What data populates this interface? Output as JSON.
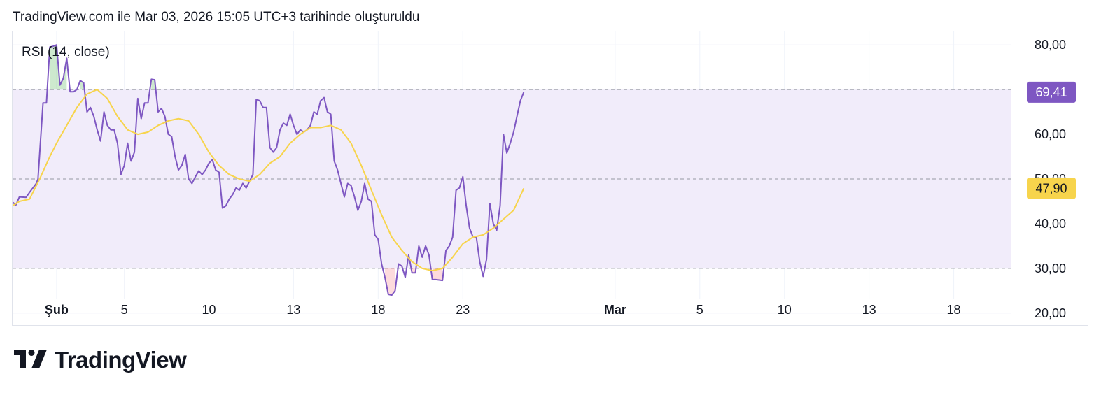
{
  "header": {
    "created_text": "TradingView.com ile Mar 03, 2026 15:05 UTC+3 tarihinde oluşturuldu"
  },
  "brand": {
    "name": "TradingView",
    "logo_icon": "tradingview-logo-icon"
  },
  "colors": {
    "rsi_line": "#7e57c2",
    "ma_line": "#f7d44c",
    "band_fill": "#f1ecfa",
    "rsi_badge": "#7e57c2",
    "ma_badge": "#f7d44c",
    "grid": "#f0f3fa",
    "dashed": "#9598a1"
  },
  "chart_data": {
    "type": "line",
    "title": "RSI (14, close)",
    "ylim": [
      17,
      83
    ],
    "y_ticks": [
      "20,00",
      "30,00",
      "40,00",
      "50,00",
      "60,00",
      "80,00"
    ],
    "y_tick_values": [
      20,
      30,
      40,
      50,
      60,
      80
    ],
    "x_ticks": [
      {
        "label": "Şub",
        "day": 0,
        "bold": true
      },
      {
        "label": "5",
        "day": 4,
        "bold": false
      },
      {
        "label": "10",
        "day": 9,
        "bold": false
      },
      {
        "label": "13",
        "day": 14,
        "bold": false
      },
      {
        "label": "18",
        "day": 19,
        "bold": false
      },
      {
        "label": "23",
        "day": 24,
        "bold": false
      },
      {
        "label": "Mar",
        "day": 33,
        "bold": true
      },
      {
        "label": "5",
        "day": 38,
        "bold": false
      },
      {
        "label": "10",
        "day": 43,
        "bold": false
      },
      {
        "label": "13",
        "day": 48,
        "bold": false
      },
      {
        "label": "18",
        "day": 53,
        "bold": false
      }
    ],
    "x_range_days": [
      -2.6,
      61
    ],
    "overbought": 70,
    "midline": 50,
    "oversold": 30,
    "series": [
      {
        "values": [
          [
            -2.6,
            44.8
          ],
          [
            -2.4,
            44.2
          ],
          [
            -2.2,
            46.0
          ],
          [
            -1.8,
            45.9
          ],
          [
            -1.6,
            47.0
          ],
          [
            -1.2,
            49.0
          ],
          [
            -1.1,
            50.0
          ],
          [
            -0.8,
            67.0
          ],
          [
            -0.6,
            67.0
          ],
          [
            -0.4,
            79.5
          ],
          [
            -0.2,
            79.7
          ],
          [
            0.0,
            80.0
          ],
          [
            0.2,
            71.0
          ],
          [
            0.4,
            72.5
          ],
          [
            0.6,
            77.0
          ],
          [
            0.8,
            69.5
          ],
          [
            1.0,
            69.5
          ],
          [
            1.2,
            70.0
          ],
          [
            1.4,
            72.0
          ],
          [
            1.6,
            71.5
          ],
          [
            1.8,
            65.0
          ],
          [
            2.0,
            66.0
          ],
          [
            2.2,
            64.0
          ],
          [
            2.4,
            61.0
          ],
          [
            2.6,
            58.5
          ],
          [
            2.8,
            65.0
          ],
          [
            3.0,
            62.0
          ],
          [
            3.2,
            61.0
          ],
          [
            3.4,
            61.0
          ],
          [
            3.6,
            58.0
          ],
          [
            3.8,
            51.0
          ],
          [
            4.0,
            53.0
          ],
          [
            4.2,
            58.0
          ],
          [
            4.4,
            54.0
          ],
          [
            4.6,
            56.0
          ],
          [
            4.8,
            68.0
          ],
          [
            5.0,
            63.5
          ],
          [
            5.2,
            67.0
          ],
          [
            5.4,
            67.0
          ],
          [
            5.6,
            72.3
          ],
          [
            5.8,
            72.2
          ],
          [
            6.0,
            65.0
          ],
          [
            6.2,
            65.8
          ],
          [
            6.4,
            64.0
          ],
          [
            6.6,
            60.0
          ],
          [
            6.8,
            59.5
          ],
          [
            7.0,
            55.0
          ],
          [
            7.2,
            52.0
          ],
          [
            7.4,
            53.0
          ],
          [
            7.6,
            55.5
          ],
          [
            7.8,
            50.0
          ],
          [
            8.0,
            49.0
          ],
          [
            8.2,
            50.5
          ],
          [
            8.4,
            51.8
          ],
          [
            8.6,
            51.0
          ],
          [
            8.8,
            52.0
          ],
          [
            9.0,
            53.5
          ],
          [
            9.2,
            54.3
          ],
          [
            9.4,
            52.0
          ],
          [
            9.6,
            51.5
          ],
          [
            9.8,
            43.5
          ],
          [
            10.0,
            44.0
          ],
          [
            10.2,
            45.5
          ],
          [
            10.4,
            46.5
          ],
          [
            10.6,
            48.0
          ],
          [
            10.8,
            47.5
          ],
          [
            11.0,
            49.0
          ],
          [
            11.2,
            48.0
          ],
          [
            11.4,
            49.5
          ],
          [
            11.6,
            51.0
          ],
          [
            11.8,
            67.8
          ],
          [
            12.0,
            67.5
          ],
          [
            12.2,
            66.0
          ],
          [
            12.4,
            66.0
          ],
          [
            12.6,
            57.0
          ],
          [
            12.8,
            56.0
          ],
          [
            13.0,
            57.0
          ],
          [
            13.2,
            61.0
          ],
          [
            13.4,
            62.5
          ],
          [
            13.6,
            62.0
          ],
          [
            13.8,
            64.5
          ],
          [
            14.0,
            62.0
          ],
          [
            14.2,
            60.0
          ],
          [
            14.4,
            61.0
          ],
          [
            14.6,
            60.5
          ],
          [
            14.8,
            61.0
          ],
          [
            15.0,
            62.0
          ],
          [
            15.2,
            65.0
          ],
          [
            15.4,
            64.5
          ],
          [
            15.6,
            67.5
          ],
          [
            15.8,
            68.2
          ],
          [
            16.0,
            65.0
          ],
          [
            16.2,
            64.5
          ],
          [
            16.4,
            54.0
          ],
          [
            16.6,
            52.0
          ],
          [
            16.8,
            49.0
          ],
          [
            17.0,
            46.0
          ],
          [
            17.2,
            49.0
          ],
          [
            17.4,
            48.5
          ],
          [
            17.6,
            46.0
          ],
          [
            17.8,
            43.0
          ],
          [
            18.0,
            45.0
          ],
          [
            18.2,
            49.0
          ],
          [
            18.4,
            45.5
          ],
          [
            18.6,
            45.0
          ],
          [
            18.8,
            37.5
          ],
          [
            19.0,
            36.5
          ],
          [
            19.2,
            31.0
          ],
          [
            19.4,
            28.0
          ],
          [
            19.6,
            24.2
          ],
          [
            19.8,
            24.0
          ],
          [
            20.0,
            25.0
          ],
          [
            20.2,
            31.0
          ],
          [
            20.4,
            30.5
          ],
          [
            20.6,
            28.0
          ],
          [
            20.8,
            33.0
          ],
          [
            21.0,
            29.0
          ],
          [
            21.2,
            29.0
          ],
          [
            21.4,
            35.0
          ],
          [
            21.6,
            32.5
          ],
          [
            21.8,
            35.0
          ],
          [
            22.0,
            33.0
          ],
          [
            22.2,
            27.5
          ],
          [
            22.4,
            27.5
          ],
          [
            22.8,
            27.3
          ],
          [
            23.0,
            34.0
          ],
          [
            23.2,
            35.0
          ],
          [
            23.4,
            37.0
          ],
          [
            23.6,
            47.5
          ],
          [
            23.8,
            48.0
          ],
          [
            24.0,
            50.5
          ],
          [
            24.2,
            44.0
          ],
          [
            24.4,
            39.0
          ],
          [
            24.6,
            37.0
          ],
          [
            24.8,
            37.0
          ],
          [
            25.0,
            31.5
          ],
          [
            25.2,
            28.2
          ],
          [
            25.4,
            32.0
          ],
          [
            25.6,
            44.5
          ],
          [
            25.8,
            40.0
          ],
          [
            26.0,
            38.5
          ],
          [
            26.2,
            44.0
          ],
          [
            26.4,
            60.0
          ],
          [
            26.6,
            55.8
          ],
          [
            26.8,
            58.0
          ],
          [
            27.0,
            60.5
          ],
          [
            27.2,
            64.0
          ],
          [
            27.4,
            67.5
          ],
          [
            27.6,
            69.41
          ]
        ]
      },
      {
        "values": [
          [
            -2.6,
            44.0
          ],
          [
            -2.2,
            45.0
          ],
          [
            -1.6,
            45.5
          ],
          [
            -1.0,
            50.0
          ],
          [
            -0.4,
            55.0
          ],
          [
            0.0,
            58.0
          ],
          [
            0.6,
            62.0
          ],
          [
            1.2,
            66.0
          ],
          [
            1.8,
            69.0
          ],
          [
            2.4,
            70.0
          ],
          [
            3.0,
            68.0
          ],
          [
            3.6,
            64.0
          ],
          [
            4.2,
            61.0
          ],
          [
            4.8,
            60.0
          ],
          [
            5.4,
            60.5
          ],
          [
            6.0,
            62.0
          ],
          [
            6.6,
            63.0
          ],
          [
            7.2,
            63.5
          ],
          [
            7.8,
            63.0
          ],
          [
            8.4,
            60.0
          ],
          [
            9.0,
            56.0
          ],
          [
            9.6,
            53.0
          ],
          [
            10.2,
            51.0
          ],
          [
            10.8,
            50.0
          ],
          [
            11.4,
            49.5
          ],
          [
            12.0,
            51.0
          ],
          [
            12.6,
            53.5
          ],
          [
            13.2,
            55.0
          ],
          [
            13.8,
            58.0
          ],
          [
            14.4,
            60.0
          ],
          [
            15.0,
            61.5
          ],
          [
            15.6,
            61.5
          ],
          [
            16.2,
            62.0
          ],
          [
            16.8,
            61.0
          ],
          [
            17.4,
            58.0
          ],
          [
            18.0,
            53.0
          ],
          [
            18.6,
            47.5
          ],
          [
            19.2,
            42.0
          ],
          [
            19.8,
            37.0
          ],
          [
            20.4,
            34.0
          ],
          [
            21.0,
            31.5
          ],
          [
            21.6,
            30.0
          ],
          [
            22.2,
            29.5
          ],
          [
            22.8,
            30.0
          ],
          [
            23.4,
            32.5
          ],
          [
            24.0,
            35.5
          ],
          [
            24.6,
            37.0
          ],
          [
            25.2,
            37.5
          ],
          [
            25.8,
            39.0
          ],
          [
            26.4,
            41.0
          ],
          [
            27.0,
            43.0
          ],
          [
            27.6,
            47.9
          ]
        ]
      }
    ],
    "last_values": {
      "rsi": "69,41",
      "ma": "47,90"
    }
  }
}
